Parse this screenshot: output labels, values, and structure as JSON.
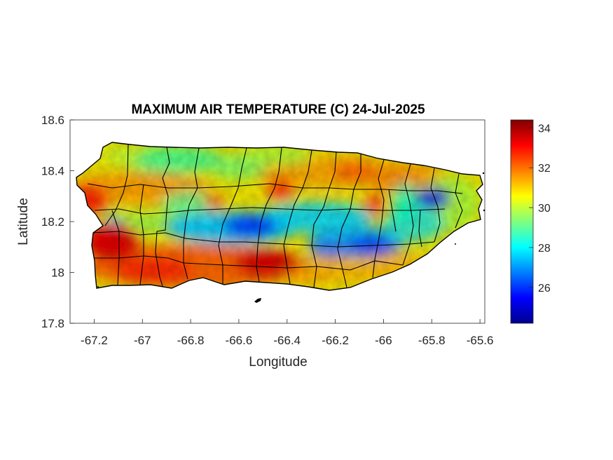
{
  "title": "MAXIMUM AIR TEMPERATURE (C) 24-Jul-2025",
  "xlabel": "Longitude",
  "ylabel": "Latitude",
  "x_ticks": [
    "-67.2",
    "-67",
    "-66.8",
    "-66.6",
    "-66.4",
    "-66.2",
    "-66",
    "-65.8",
    "-65.6"
  ],
  "y_ticks": [
    "18.6",
    "18.4",
    "18.2",
    "18",
    "17.8"
  ],
  "colorbar_ticks": [
    "34",
    "32",
    "30",
    "28",
    "26"
  ],
  "colors": {
    "colormap": [
      "#00008f",
      "#0000ff",
      "#00ffff",
      "#ffff00",
      "#ff0000",
      "#800000"
    ],
    "border": "#000000"
  },
  "chart_data": {
    "type": "heatmap",
    "title": "MAXIMUM AIR TEMPERATURE (C) 24-Jul-2025",
    "xlabel": "Longitude",
    "ylabel": "Latitude",
    "xlim": [
      -67.3,
      -65.58
    ],
    "ylim": [
      17.8,
      18.6
    ],
    "x_ticks": [
      -67.2,
      -67,
      -66.8,
      -66.6,
      -66.4,
      -66.2,
      -66,
      -65.8,
      -65.6
    ],
    "y_ticks": [
      18.6,
      18.4,
      18.2,
      18,
      17.8
    ],
    "colorbar": {
      "min": 24.2,
      "max": 34.4,
      "ticks": [
        34,
        32,
        30,
        28,
        26
      ],
      "colormap": "jet"
    },
    "region": "Puerto Rico",
    "temperature_features": [
      {
        "lon": -67.12,
        "lat": 18.13,
        "value": 34.0
      },
      {
        "lon": -66.52,
        "lat": 18.04,
        "value": 33.5
      },
      {
        "lon": -66.45,
        "lat": 18.33,
        "value": 32.5
      },
      {
        "lon": -66.15,
        "lat": 18.38,
        "value": 32.5
      },
      {
        "lon": -66.03,
        "lat": 18.25,
        "value": 32.5
      },
      {
        "lon": -66.95,
        "lat": 18.38,
        "value": 31.5
      },
      {
        "lon": -67.17,
        "lat": 18.2,
        "value": 28.0
      },
      {
        "lon": -66.58,
        "lat": 18.17,
        "value": 25.5
      },
      {
        "lon": -66.05,
        "lat": 18.1,
        "value": 25.5
      },
      {
        "lon": -65.8,
        "lat": 18.29,
        "value": 24.5
      },
      {
        "lon": -66.3,
        "lat": 18.14,
        "value": 27.5
      },
      {
        "lon": -66.85,
        "lat": 18.25,
        "value": 28.5
      },
      {
        "lon": -66.78,
        "lat": 18.42,
        "value": 28.5
      },
      {
        "lon": -66.55,
        "lat": 18.44,
        "value": 29.0
      },
      {
        "lon": -65.68,
        "lat": 18.25,
        "value": 30.0
      }
    ]
  }
}
